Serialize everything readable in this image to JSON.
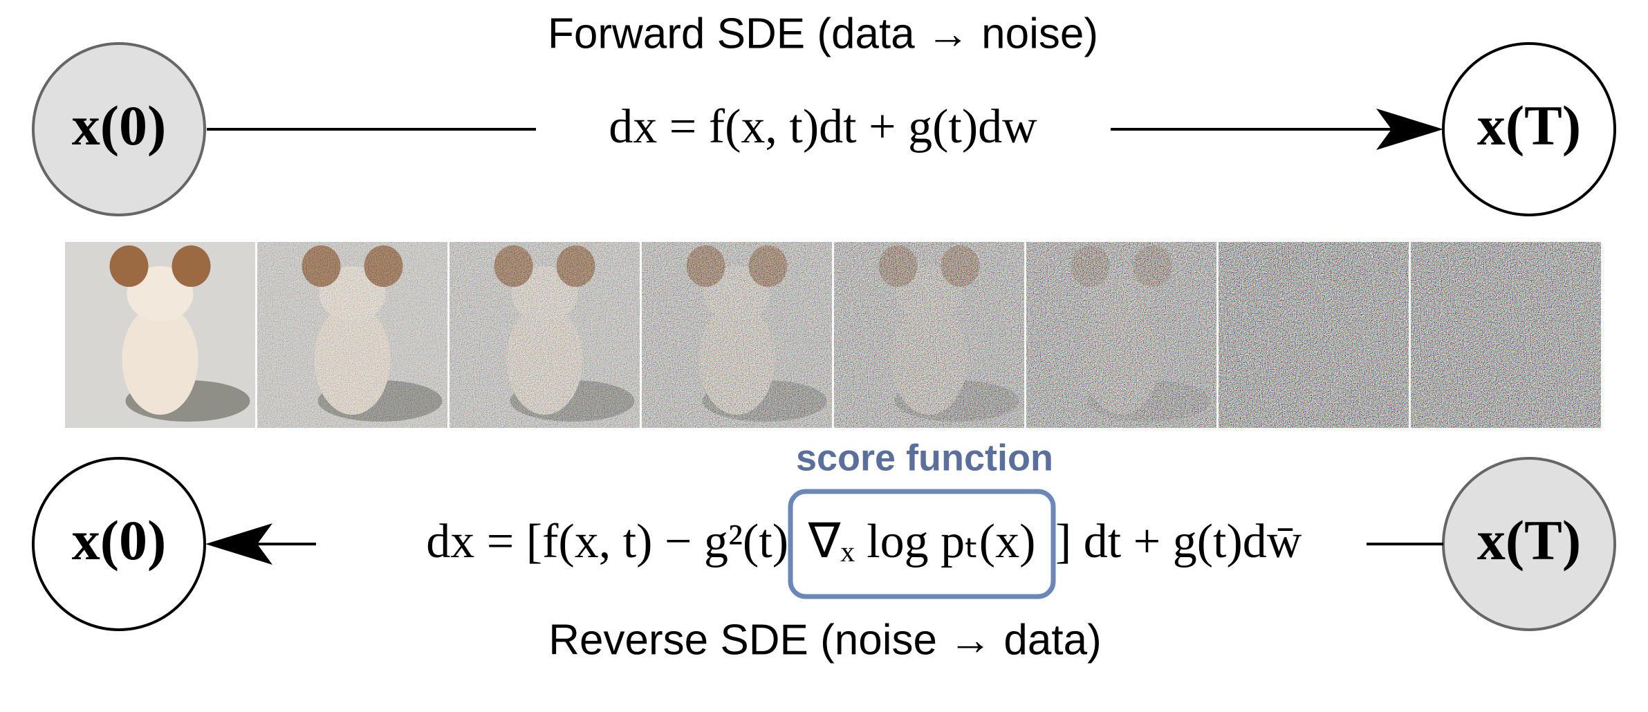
{
  "forward": {
    "title": "Forward SDE (data → noise)",
    "start_node": "x(0)",
    "end_node": "x(T)",
    "equation": "dx = f(x, t)dt + g(t)dw"
  },
  "reverse": {
    "title": "Reverse SDE (noise → data)",
    "start_node": "x(T)",
    "end_node": "x(0)",
    "score_label": "score function",
    "equation": {
      "before": "dx = [f(x, t) − g²(t)",
      "score": "∇ₓ log pₜ(x)",
      "after": "] dt + g(t)dw̄"
    }
  }
}
